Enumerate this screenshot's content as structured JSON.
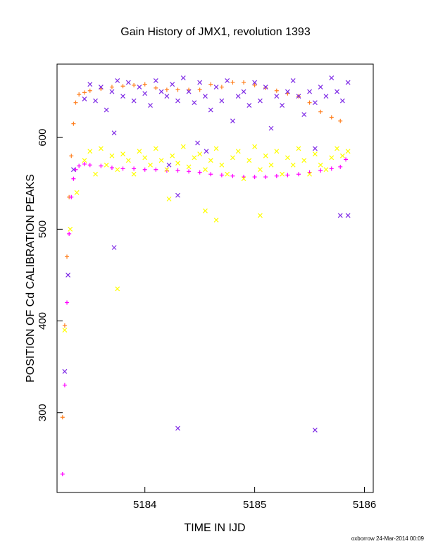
{
  "colors": {
    "background": "#ffffff",
    "axis": "#000000",
    "orange": "#ff7f1e",
    "magenta": "#ff00ff",
    "purple": "#7f2be6",
    "yellow": "#ffff00"
  },
  "footer": "oxborrow 24-Mar-2014 00:09",
  "chart_data": {
    "type": "scatter",
    "title": "Gain History of JMX1, revolution 1393",
    "xlabel": "TIME IN IJD",
    "ylabel": "POSITION OF Cd CALIBRATION PEAKS",
    "xlim": [
      5183.2,
      5186.08
    ],
    "ylim": [
      213,
      680
    ],
    "xticks": [
      5184,
      5185,
      5186
    ],
    "yticks": [
      300,
      400,
      500,
      600
    ],
    "grid": false,
    "legend": "none",
    "series": [
      {
        "marker": "plus",
        "color": "orange",
        "x": [
          5183.25,
          5183.27,
          5183.29,
          5183.31,
          5183.33,
          5183.35,
          5183.37,
          5183.4,
          5183.45,
          5183.5,
          5183.6,
          5183.7,
          5183.8,
          5183.9,
          5184.0,
          5184.1,
          5184.2,
          5184.3,
          5184.4,
          5184.5,
          5184.6,
          5184.7,
          5184.8,
          5184.9,
          5185.0,
          5185.1,
          5185.2,
          5185.3,
          5185.4,
          5185.5,
          5185.6,
          5185.7,
          5185.78
        ],
        "y": [
          295,
          395,
          470,
          535,
          580,
          615,
          638,
          647,
          649,
          651,
          653,
          655,
          656,
          657,
          658,
          654,
          652,
          652,
          652,
          652,
          658,
          655,
          660,
          660,
          657,
          654,
          651,
          648,
          645,
          638,
          628,
          622,
          618
        ]
      },
      {
        "marker": "plus",
        "color": "magenta",
        "x": [
          5183.25,
          5183.27,
          5183.29,
          5183.31,
          5183.33,
          5183.35,
          5183.37,
          5183.4,
          5183.45,
          5183.5,
          5183.6,
          5183.7,
          5183.8,
          5183.9,
          5184.0,
          5184.1,
          5184.2,
          5184.3,
          5184.4,
          5184.5,
          5184.6,
          5184.7,
          5184.8,
          5184.9,
          5185.0,
          5185.1,
          5185.2,
          5185.3,
          5185.4,
          5185.5,
          5185.6,
          5185.7,
          5185.78,
          5185.83
        ],
        "y": [
          233,
          330,
          420,
          495,
          535,
          555,
          565,
          569,
          571,
          570,
          569,
          567,
          566,
          566,
          565,
          565,
          564,
          564,
          563,
          562,
          560,
          559,
          558,
          557,
          557,
          557,
          558,
          559,
          560,
          562,
          564,
          566,
          568,
          576
        ]
      },
      {
        "marker": "cross",
        "color": "purple",
        "x": [
          5183.27,
          5183.3,
          5183.35,
          5183.45,
          5183.5,
          5183.55,
          5183.6,
          5183.65,
          5183.7,
          5183.75,
          5183.8,
          5183.85,
          5183.9,
          5183.95,
          5184.0,
          5184.05,
          5184.1,
          5184.15,
          5184.2,
          5184.25,
          5184.3,
          5184.35,
          5184.4,
          5184.45,
          5184.5,
          5184.55,
          5184.6,
          5184.65,
          5184.7,
          5184.75,
          5184.8,
          5184.85,
          5184.9,
          5184.95,
          5185.0,
          5185.05,
          5185.1,
          5185.15,
          5185.2,
          5185.25,
          5185.3,
          5185.35,
          5185.4,
          5185.45,
          5185.5,
          5185.55,
          5185.6,
          5185.65,
          5185.7,
          5185.75,
          5185.8,
          5185.85,
          5183.72,
          5183.72,
          5184.22,
          5184.3,
          5184.48,
          5184.56,
          5185.55,
          5185.78,
          5185.85,
          5184.3,
          5185.55
        ],
        "y": [
          345,
          450,
          565,
          642,
          658,
          640,
          655,
          630,
          650,
          662,
          645,
          660,
          640,
          655,
          648,
          635,
          662,
          650,
          645,
          658,
          640,
          665,
          650,
          638,
          660,
          645,
          630,
          655,
          640,
          662,
          618,
          645,
          650,
          635,
          660,
          640,
          655,
          610,
          645,
          635,
          650,
          662,
          645,
          625,
          650,
          638,
          655,
          645,
          665,
          650,
          640,
          660,
          605,
          480,
          570,
          537,
          594,
          585,
          588,
          515,
          515,
          283,
          281
        ]
      },
      {
        "marker": "cross",
        "color": "yellow",
        "x": [
          5183.27,
          5183.32,
          5183.38,
          5183.45,
          5183.5,
          5183.55,
          5183.6,
          5183.65,
          5183.7,
          5183.75,
          5183.8,
          5183.85,
          5183.9,
          5183.95,
          5184.0,
          5184.05,
          5184.1,
          5184.15,
          5184.2,
          5184.25,
          5184.3,
          5184.35,
          5184.4,
          5184.45,
          5184.5,
          5184.55,
          5184.6,
          5184.65,
          5184.7,
          5184.75,
          5184.8,
          5184.85,
          5184.9,
          5184.95,
          5185.0,
          5185.05,
          5185.1,
          5185.15,
          5185.2,
          5185.25,
          5185.3,
          5185.35,
          5185.4,
          5185.45,
          5185.5,
          5185.55,
          5185.6,
          5185.65,
          5185.7,
          5185.75,
          5185.8,
          5185.85,
          5183.75,
          5184.22,
          5184.55,
          5184.65,
          5185.05
        ],
        "y": [
          390,
          500,
          540,
          575,
          585,
          560,
          588,
          570,
          580,
          565,
          582,
          575,
          560,
          585,
          578,
          570,
          588,
          575,
          565,
          580,
          572,
          590,
          568,
          578,
          582,
          565,
          575,
          588,
          570,
          560,
          578,
          585,
          555,
          575,
          590,
          565,
          580,
          570,
          585,
          560,
          578,
          570,
          588,
          575,
          560,
          582,
          570,
          565,
          578,
          588,
          580,
          585,
          435,
          533,
          520,
          510,
          515
        ]
      }
    ]
  }
}
